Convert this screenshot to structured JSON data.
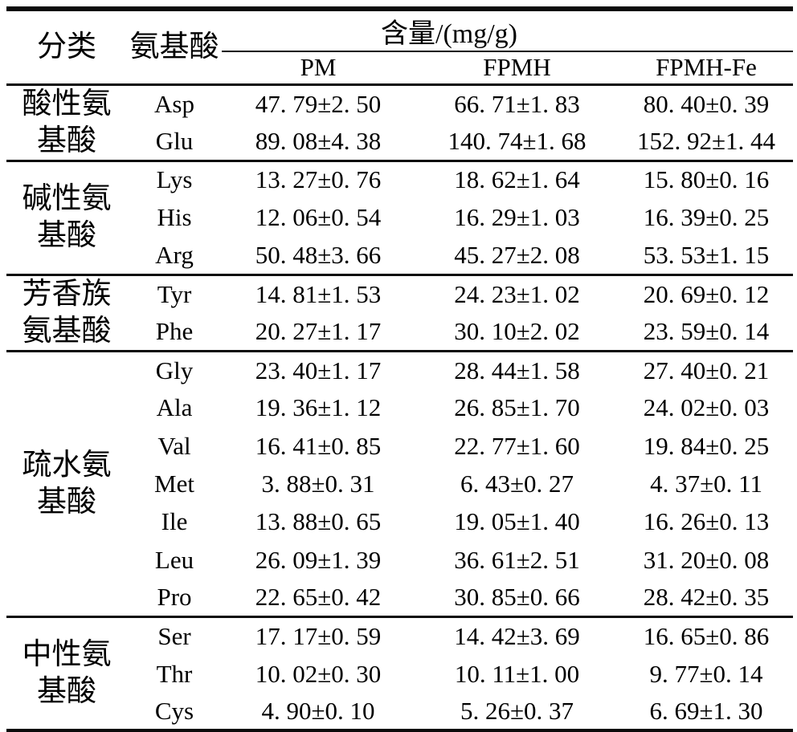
{
  "table": {
    "headers": {
      "category": "分类",
      "amino_acid": "氨基酸",
      "content_group": "含量/(mg/g)",
      "samples": {
        "pm": "PM",
        "fpmh": "FPMH",
        "fpmh_fe": "FPMH-Fe"
      }
    },
    "groups": [
      {
        "category_lines": [
          "酸性氨",
          "基酸"
        ],
        "rows": [
          {
            "name": "Asp",
            "pm": "47. 79±2. 50",
            "fpmh": "66. 71±1. 83",
            "fpmh_fe": "80. 40±0. 39"
          },
          {
            "name": "Glu",
            "pm": "89. 08±4. 38",
            "fpmh": "140. 74±1. 68",
            "fpmh_fe": "152. 92±1. 44"
          }
        ]
      },
      {
        "category_lines": [
          "碱性氨",
          "基酸"
        ],
        "rows": [
          {
            "name": "Lys",
            "pm": "13. 27±0. 76",
            "fpmh": "18. 62±1. 64",
            "fpmh_fe": "15. 80±0. 16"
          },
          {
            "name": "His",
            "pm": "12. 06±0. 54",
            "fpmh": "16. 29±1. 03",
            "fpmh_fe": "16. 39±0. 25"
          },
          {
            "name": "Arg",
            "pm": "50. 48±3. 66",
            "fpmh": "45. 27±2. 08",
            "fpmh_fe": "53. 53±1. 15"
          }
        ]
      },
      {
        "category_lines": [
          "芳香族",
          "氨基酸"
        ],
        "rows": [
          {
            "name": "Tyr",
            "pm": "14. 81±1. 53",
            "fpmh": "24. 23±1. 02",
            "fpmh_fe": "20. 69±0. 12"
          },
          {
            "name": "Phe",
            "pm": "20. 27±1. 17",
            "fpmh": "30. 10±2. 02",
            "fpmh_fe": "23. 59±0. 14"
          }
        ]
      },
      {
        "category_lines": [
          "疏水氨",
          "基酸"
        ],
        "rows": [
          {
            "name": "Gly",
            "pm": "23. 40±1. 17",
            "fpmh": "28. 44±1. 58",
            "fpmh_fe": "27. 40±0. 21"
          },
          {
            "name": "Ala",
            "pm": "19. 36±1. 12",
            "fpmh": "26. 85±1. 70",
            "fpmh_fe": "24. 02±0. 03"
          },
          {
            "name": "Val",
            "pm": "16. 41±0. 85",
            "fpmh": "22. 77±1. 60",
            "fpmh_fe": "19. 84±0. 25"
          },
          {
            "name": "Met",
            "pm": "3. 88±0. 31",
            "fpmh": "6. 43±0. 27",
            "fpmh_fe": "4. 37±0. 11"
          },
          {
            "name": "Ile",
            "pm": "13. 88±0. 65",
            "fpmh": "19. 05±1. 40",
            "fpmh_fe": "16. 26±0. 13"
          },
          {
            "name": "Leu",
            "pm": "26. 09±1. 39",
            "fpmh": "36. 61±2. 51",
            "fpmh_fe": "31. 20±0. 08"
          },
          {
            "name": "Pro",
            "pm": "22. 65±0. 42",
            "fpmh": "30. 85±0. 66",
            "fpmh_fe": "28. 42±0. 35"
          }
        ]
      },
      {
        "category_lines": [
          "中性氨",
          "基酸"
        ],
        "rows": [
          {
            "name": "Ser",
            "pm": "17. 17±0. 59",
            "fpmh": "14. 42±3. 69",
            "fpmh_fe": "16. 65±0. 86"
          },
          {
            "name": "Thr",
            "pm": "10. 02±0. 30",
            "fpmh": "10. 11±1. 00",
            "fpmh_fe": "9. 77±0. 14"
          },
          {
            "name": "Cys",
            "pm": "4. 90±0. 10",
            "fpmh": "5. 26±0. 37",
            "fpmh_fe": "6. 69±1. 30"
          }
        ]
      }
    ]
  }
}
